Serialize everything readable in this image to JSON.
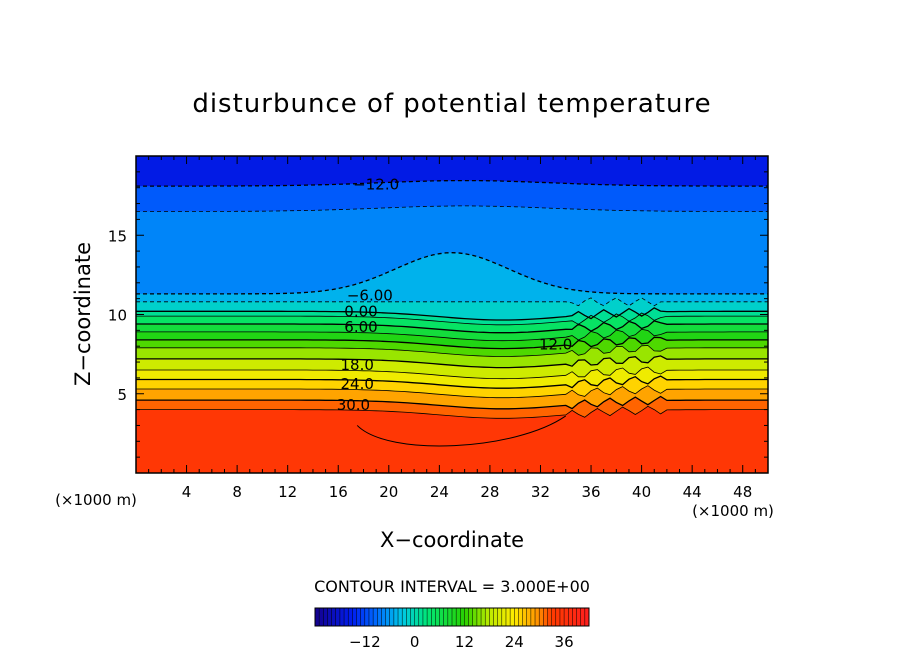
{
  "chart_data": {
    "type": "contour",
    "title": "disturbunce of potential temperature",
    "xlabel": "X−coordinate",
    "ylabel": "Z−coordinate",
    "x_unit_left": "(×1000 m)",
    "x_unit_right": "(×1000 m)",
    "xlim": [
      0,
      50
    ],
    "ylim": [
      0,
      20
    ],
    "x_ticks": [
      4,
      8,
      12,
      16,
      20,
      24,
      28,
      32,
      36,
      40,
      44,
      48
    ],
    "y_ticks": [
      5,
      10,
      15
    ],
    "contour_interval_text": "CONTOUR INTERVAL = 3.000E+00",
    "colorbar": {
      "min": -24,
      "max": 42,
      "ticks": [
        -12,
        0,
        12,
        24,
        36
      ],
      "tick_labels": [
        "−12",
        "0",
        "12",
        "24",
        "36"
      ]
    },
    "contour_labels": [
      {
        "text": "−12.0",
        "x": 19,
        "y": 18.2
      },
      {
        "text": "−6.00",
        "x": 18.5,
        "y": 11.2
      },
      {
        "text": "0.00",
        "x": 17.8,
        "y": 10.2
      },
      {
        "text": "6.00",
        "x": 17.8,
        "y": 9.2
      },
      {
        "text": "12.0",
        "x": 33.2,
        "y": 8.1
      },
      {
        "text": "18.0",
        "x": 17.5,
        "y": 6.8
      },
      {
        "text": "24.0",
        "x": 17.5,
        "y": 5.6
      },
      {
        "text": "30.0",
        "x": 17.2,
        "y": 4.3
      }
    ],
    "levels": [
      {
        "z": 18.1,
        "v": -12
      },
      {
        "z": 16.5,
        "v": -9
      },
      {
        "z": 11.3,
        "v": -6
      },
      {
        "z": 10.8,
        "v": -3
      },
      {
        "z": 10.2,
        "v": 0
      },
      {
        "z": 9.9,
        "v": 3
      },
      {
        "z": 9.4,
        "v": 6
      },
      {
        "z": 8.9,
        "v": 9
      },
      {
        "z": 8.4,
        "v": 12
      },
      {
        "z": 7.9,
        "v": 15
      },
      {
        "z": 7.2,
        "v": 18
      },
      {
        "z": 6.5,
        "v": 21
      },
      {
        "z": 5.9,
        "v": 24
      },
      {
        "z": 5.3,
        "v": 27
      },
      {
        "z": 4.6,
        "v": 30
      },
      {
        "z": 4.0,
        "v": 33
      },
      {
        "z": 0.0,
        "v": 36
      }
    ]
  }
}
